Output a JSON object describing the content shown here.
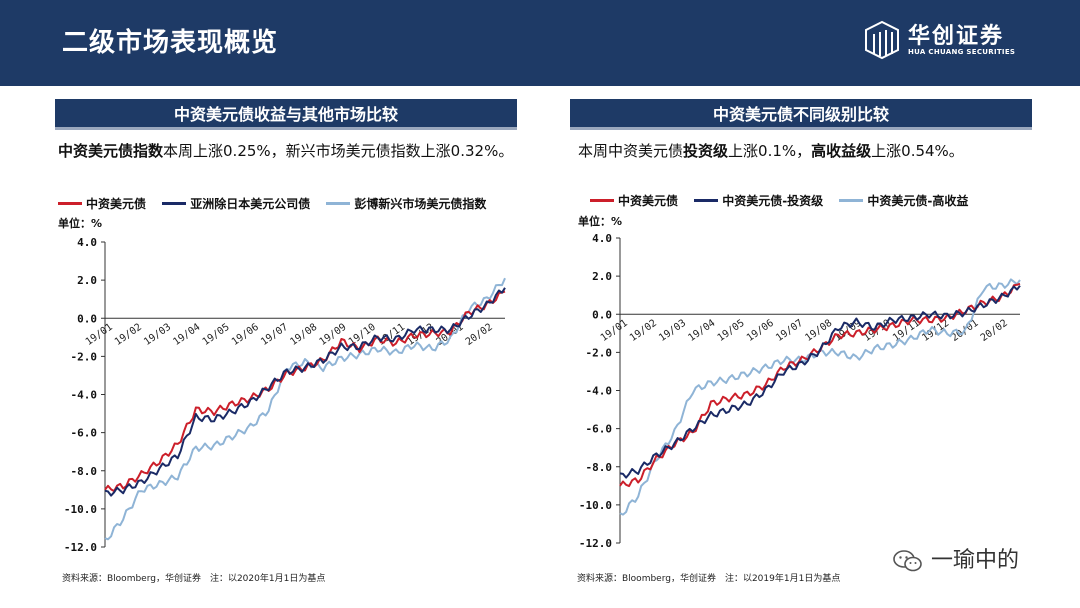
{
  "header": {
    "title": "二级市场表现概览",
    "logo_cn": "华创证券",
    "logo_en": "HUA CHUANG SECURITIES"
  },
  "left_panel": {
    "heading": "中资美元债收益与其他市场比较",
    "desc_bold": "中资美元债指数",
    "desc_rest": "本周上涨0.25%，新兴市场美元债指数上涨0.32%。",
    "unit": "单位：%",
    "source": "资料来源：Bloomberg，华创证券　注：以2020年1月1日为基点"
  },
  "right_panel": {
    "heading": "中资美元债不同级别比较",
    "desc_pre": "本周中资美元债",
    "desc_b1": "投资级",
    "desc_mid": "上涨0.1%，",
    "desc_b2": "高收益级",
    "desc_post": "上涨0.54%。",
    "unit": "单位：%",
    "source": "资料来源：Bloomberg，华创证券　注：以2019年1月1日为基点"
  },
  "watermark": "一瑜中的",
  "chart_data": [
    {
      "type": "line",
      "ylim": [
        -12.0,
        4.0
      ],
      "y_ticks": [
        "4.0",
        "2.0",
        "0.0",
        "-2.0",
        "-4.0",
        "-6.0",
        "-8.0",
        "-10.0",
        "-12.0"
      ],
      "x_ticks": [
        "19/01",
        "19/02",
        "19/03",
        "19/04",
        "19/05",
        "19/06",
        "19/07",
        "19/08",
        "19/09",
        "19/10",
        "19/11",
        "19/12",
        "20/01",
        "20/02"
      ],
      "series": [
        {
          "name": "中资美元债",
          "color": "#cc1f2a",
          "values": [
            -9.0,
            -8.8,
            -8.2,
            -7.5,
            -6.6,
            -4.8,
            -4.9,
            -4.5,
            -4.2,
            -3.7,
            -2.9,
            -2.6,
            -2.2,
            -1.2,
            -1.6,
            -1.1,
            -1.3,
            -0.9,
            -0.8,
            -0.7,
            0.3,
            0.7,
            1.4
          ]
        },
        {
          "name": "亚洲除日本美元公司债",
          "color": "#1a2a66",
          "values": [
            -9.2,
            -9.0,
            -8.6,
            -7.9,
            -7.2,
            -5.2,
            -5.3,
            -4.9,
            -4.4,
            -3.6,
            -2.8,
            -2.6,
            -2.2,
            -1.5,
            -1.5,
            -1.0,
            -1.1,
            -0.6,
            -0.6,
            -0.6,
            0.1,
            0.7,
            1.6
          ]
        },
        {
          "name": "彭博新兴市场美元债指数",
          "color": "#8fb4d6",
          "values": [
            -11.7,
            -10.5,
            -9.0,
            -8.7,
            -8.3,
            -6.8,
            -6.7,
            -6.2,
            -5.7,
            -4.8,
            -2.6,
            -2.3,
            -2.6,
            -2.1,
            -1.9,
            -1.6,
            -1.8,
            -1.4,
            -1.6,
            -1.1,
            0.5,
            1.0,
            2.1
          ]
        }
      ]
    },
    {
      "type": "line",
      "ylim": [
        -12.0,
        4.0
      ],
      "y_ticks": [
        "4.0",
        "2.0",
        "0.0",
        "-2.0",
        "-4.0",
        "-6.0",
        "-8.0",
        "-10.0",
        "-12.0"
      ],
      "x_ticks": [
        "19/01",
        "19/02",
        "19/03",
        "19/04",
        "19/05",
        "19/06",
        "19/07",
        "19/08",
        "19/09",
        "19/10",
        "19/11",
        "19/12",
        "20/01",
        "20/02"
      ],
      "series": [
        {
          "name": "中资美元债",
          "color": "#cc1f2a",
          "values": [
            -9.0,
            -8.7,
            -7.6,
            -6.8,
            -6.2,
            -4.7,
            -4.4,
            -4.2,
            -3.7,
            -2.8,
            -2.4,
            -1.8,
            -1.1,
            -1.0,
            -0.8,
            -0.6,
            -0.3,
            -0.3,
            -0.2,
            0.2,
            0.6,
            0.9,
            1.6
          ]
        },
        {
          "name": "中资美元债-投资级",
          "color": "#1a2a66",
          "values": [
            -8.5,
            -8.2,
            -7.4,
            -6.8,
            -6.0,
            -5.3,
            -5.0,
            -4.7,
            -4.0,
            -3.0,
            -2.6,
            -1.9,
            -0.7,
            -0.4,
            -0.7,
            -0.3,
            -0.2,
            0.0,
            -0.1,
            0.1,
            0.5,
            0.9,
            1.5
          ]
        },
        {
          "name": "中资美元债-高收益",
          "color": "#8fb4d6",
          "values": [
            -10.6,
            -9.5,
            -7.6,
            -6.2,
            -4.0,
            -3.6,
            -3.4,
            -3.1,
            -2.8,
            -2.4,
            -2.4,
            -2.0,
            -2.0,
            -2.3,
            -1.8,
            -1.6,
            -1.3,
            -0.8,
            -1.0,
            -0.9,
            1.4,
            1.5,
            1.8
          ]
        }
      ]
    }
  ]
}
